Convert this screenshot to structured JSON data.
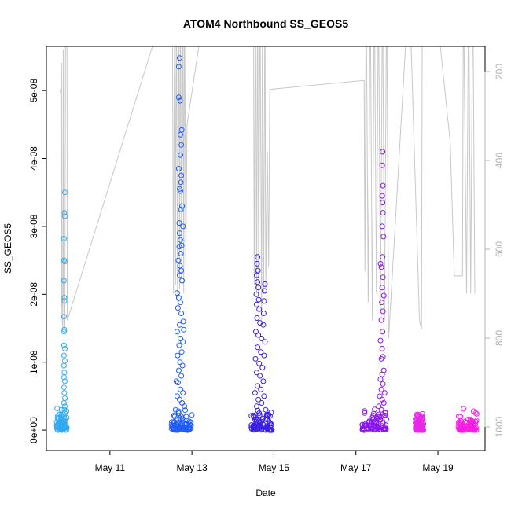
{
  "chart_data": {
    "type": "scatter",
    "title": "ATOM4 Northbound SS_GEOS5",
    "xlabel": "Date",
    "ylabel": "SS_GEOS5",
    "x_ticks": [
      "May 11",
      "May 13",
      "May 15",
      "May 17",
      "May 19"
    ],
    "x_tick_days": [
      11,
      13,
      15,
      17,
      19
    ],
    "xlim_days": [
      9.45,
      20.15
    ],
    "ylim": [
      -3e-09,
      5.65e-08
    ],
    "y_ticks": [
      0,
      1e-08,
      2e-08,
      3e-08,
      4e-08,
      5e-08
    ],
    "y_tick_labels": [
      "0e+00",
      "1e-08",
      "2e-08",
      "3e-08",
      "4e-08",
      "5e-08"
    ],
    "right_axis": {
      "ticks": [
        200,
        400,
        600,
        800,
        1000
      ],
      "inverted": true,
      "color": "#b3b3b3"
    },
    "grid": false,
    "legend": "none",
    "colors": {
      "flight1": "#33a9f0",
      "flight2": "#1f5cf5",
      "flight3": "#3a1ee6",
      "flight4": "#8a14f0",
      "flight5": "#e62ae6",
      "flight6": "#f51ee3",
      "pressure_line": "#c8c8c8"
    },
    "flights": [
      {
        "key": "flight1",
        "day_range": [
          9.7,
          9.95
        ],
        "points": [
          [
            9.9,
            3.5e-08
          ],
          [
            9.89,
            3.2e-08
          ],
          [
            9.9,
            3.15e-08
          ],
          [
            9.88,
            2.82e-08
          ],
          [
            9.88,
            2.5e-08
          ],
          [
            9.9,
            2.48e-08
          ],
          [
            9.88,
            2.2e-08
          ],
          [
            9.89,
            1.95e-08
          ],
          [
            9.89,
            1.9e-08
          ],
          [
            9.88,
            1.67e-08
          ],
          [
            9.89,
            1.48e-08
          ],
          [
            9.88,
            1.45e-08
          ],
          [
            9.88,
            1.25e-08
          ],
          [
            9.9,
            1.2e-08
          ],
          [
            9.88,
            1.1e-08
          ],
          [
            9.9,
            1.02e-08
          ],
          [
            9.88,
            9.5e-09
          ],
          [
            9.89,
            8.5e-09
          ],
          [
            9.88,
            7.8e-09
          ],
          [
            9.9,
            7.2e-09
          ],
          [
            9.88,
            6.3e-09
          ],
          [
            9.89,
            5.5e-09
          ],
          [
            9.9,
            4.7e-09
          ],
          [
            9.88,
            4e-09
          ],
          [
            9.9,
            3.5e-09
          ],
          [
            9.89,
            3e-09
          ],
          [
            9.9,
            2.5e-09
          ],
          [
            9.88,
            2e-09
          ],
          [
            9.91,
            1.5e-09
          ],
          [
            9.89,
            1e-09
          ],
          [
            9.92,
            5e-10
          ],
          [
            9.87,
            2e-10
          ]
        ]
      },
      {
        "key": "flight2",
        "day_range": [
          12.5,
          13.0
        ],
        "points": [
          [
            12.7,
            5.48e-08
          ],
          [
            12.68,
            5.35e-08
          ],
          [
            12.68,
            4.9e-08
          ],
          [
            12.71,
            4.85e-08
          ],
          [
            12.75,
            4.42e-08
          ],
          [
            12.72,
            4.35e-08
          ],
          [
            12.74,
            4.2e-08
          ],
          [
            12.72,
            4.05e-08
          ],
          [
            12.68,
            3.85e-08
          ],
          [
            12.74,
            3.75e-08
          ],
          [
            12.73,
            3.65e-08
          ],
          [
            12.7,
            3.55e-08
          ],
          [
            12.72,
            3.52e-08
          ],
          [
            12.76,
            3.3e-08
          ],
          [
            12.73,
            3.25e-08
          ],
          [
            12.69,
            3.05e-08
          ],
          [
            12.78,
            3e-08
          ],
          [
            12.7,
            2.9e-08
          ],
          [
            12.72,
            2.8e-08
          ],
          [
            12.75,
            2.72e-08
          ],
          [
            12.69,
            2.7e-08
          ],
          [
            12.73,
            2.6e-08
          ],
          [
            12.67,
            2.5e-08
          ],
          [
            12.71,
            2.42e-08
          ],
          [
            12.74,
            2.35e-08
          ],
          [
            12.7,
            2.28e-08
          ],
          [
            12.76,
            2.2e-08
          ],
          [
            12.64,
            2.02e-08
          ],
          [
            12.68,
            1.95e-08
          ],
          [
            12.72,
            1.88e-08
          ],
          [
            12.66,
            1.8e-08
          ],
          [
            12.74,
            1.72e-08
          ],
          [
            12.79,
            1.6e-08
          ],
          [
            12.7,
            1.55e-08
          ],
          [
            12.8,
            1.48e-08
          ],
          [
            12.64,
            1.45e-08
          ],
          [
            12.72,
            1.35e-08
          ],
          [
            12.78,
            1.3e-08
          ],
          [
            12.69,
            1.25e-08
          ],
          [
            12.75,
            1.15e-08
          ],
          [
            12.65,
            1.1e-08
          ],
          [
            12.71,
            1e-08
          ],
          [
            12.77,
            9.5e-09
          ],
          [
            12.68,
            8.8e-09
          ],
          [
            12.74,
            8e-09
          ],
          [
            12.62,
            7.2e-09
          ],
          [
            12.66,
            7e-09
          ],
          [
            12.72,
            6e-09
          ],
          [
            12.78,
            5.5e-09
          ],
          [
            12.64,
            5e-09
          ],
          [
            12.7,
            4.5e-09
          ],
          [
            12.76,
            4e-09
          ],
          [
            12.82,
            3.5e-09
          ],
          [
            12.6,
            3e-09
          ],
          [
            12.68,
            2.5e-09
          ],
          [
            12.74,
            2e-09
          ],
          [
            12.8,
            1.5e-09
          ],
          [
            12.56,
            1e-09
          ],
          [
            12.62,
            5e-10
          ],
          [
            12.7,
            2e-10
          ],
          [
            12.78,
            1e-10
          ],
          [
            12.9,
            0.0
          ]
        ]
      },
      {
        "key": "flight3",
        "day_range": [
          14.45,
          14.95
        ],
        "points": [
          [
            14.6,
            2.55e-08
          ],
          [
            14.59,
            2.45e-08
          ],
          [
            14.61,
            2.35e-08
          ],
          [
            14.58,
            2.28e-08
          ],
          [
            14.6,
            2.18e-08
          ],
          [
            14.78,
            2.15e-08
          ],
          [
            14.62,
            2.1e-08
          ],
          [
            14.77,
            2.05e-08
          ],
          [
            14.57,
            2e-08
          ],
          [
            14.63,
            1.92e-08
          ],
          [
            14.76,
            1.9e-08
          ],
          [
            14.58,
            1.85e-08
          ],
          [
            14.64,
            1.78e-08
          ],
          [
            14.75,
            1.72e-08
          ],
          [
            14.59,
            1.65e-08
          ],
          [
            14.66,
            1.58e-08
          ],
          [
            14.74,
            1.55e-08
          ],
          [
            14.56,
            1.45e-08
          ],
          [
            14.62,
            1.4e-08
          ],
          [
            14.7,
            1.35e-08
          ],
          [
            14.78,
            1.3e-08
          ],
          [
            14.6,
            1.22e-08
          ],
          [
            14.68,
            1.15e-08
          ],
          [
            14.76,
            1.1e-08
          ],
          [
            14.55,
            1.05e-08
          ],
          [
            14.64,
            9.8e-09
          ],
          [
            14.72,
            9.2e-09
          ],
          [
            14.58,
            8.5e-09
          ],
          [
            14.66,
            8e-09
          ],
          [
            14.74,
            7.2e-09
          ],
          [
            14.6,
            6.5e-09
          ],
          [
            14.68,
            6e-09
          ],
          [
            14.54,
            5.5e-09
          ],
          [
            14.76,
            5e-09
          ],
          [
            14.62,
            4.5e-09
          ],
          [
            14.7,
            4e-09
          ],
          [
            14.58,
            3.5e-09
          ],
          [
            14.8,
            3e-09
          ],
          [
            14.64,
            2.5e-09
          ],
          [
            14.52,
            2e-09
          ],
          [
            14.72,
            1.5e-09
          ],
          [
            14.6,
            1e-09
          ],
          [
            14.68,
            5e-10
          ],
          [
            14.84,
            2e-10
          ],
          [
            14.5,
            1e-10
          ],
          [
            14.9,
            0.0
          ]
        ]
      },
      {
        "key": "flight4",
        "day_range": [
          17.15,
          17.75
        ],
        "points": [
          [
            17.65,
            4.1e-08
          ],
          [
            17.64,
            3.9e-08
          ],
          [
            17.66,
            3.6e-08
          ],
          [
            17.64,
            3.45e-08
          ],
          [
            17.65,
            3.35e-08
          ],
          [
            17.66,
            3.2e-08
          ],
          [
            17.64,
            3e-08
          ],
          [
            17.67,
            2.85e-08
          ],
          [
            17.65,
            2.55e-08
          ],
          [
            17.6,
            2.45e-08
          ],
          [
            17.62,
            2.4e-08
          ],
          [
            17.66,
            2.25e-08
          ],
          [
            17.64,
            2.1e-08
          ],
          [
            17.68,
            1.98e-08
          ],
          [
            17.63,
            1.88e-08
          ],
          [
            17.66,
            1.75e-08
          ],
          [
            17.62,
            1.62e-08
          ],
          [
            17.65,
            1.45e-08
          ],
          [
            17.6,
            1.32e-08
          ],
          [
            17.64,
            1.2e-08
          ],
          [
            17.66,
            1.08e-08
          ],
          [
            17.62,
            1.05e-08
          ],
          [
            17.68,
            8.8e-09
          ],
          [
            17.64,
            8.2e-09
          ],
          [
            17.6,
            7.5e-09
          ],
          [
            17.66,
            6.8e-09
          ],
          [
            17.62,
            6e-09
          ],
          [
            17.7,
            5.5e-09
          ],
          [
            17.58,
            5e-09
          ],
          [
            17.64,
            4.5e-09
          ],
          [
            17.68,
            4e-09
          ],
          [
            17.56,
            3.5e-09
          ],
          [
            17.62,
            3e-09
          ],
          [
            17.72,
            2.5e-09
          ],
          [
            17.54,
            2e-09
          ],
          [
            17.6,
            1.5e-09
          ],
          [
            17.66,
            1e-09
          ],
          [
            17.5,
            5e-10
          ],
          [
            17.4,
            2e-10
          ],
          [
            17.3,
            1e-10
          ],
          [
            17.2,
            0.0
          ]
        ]
      },
      {
        "key": "flight5",
        "day_range": [
          18.45,
          18.65
        ],
        "points": [
          [
            18.5,
            1.5e-09
          ],
          [
            18.5,
            1.2e-09
          ],
          [
            18.51,
            8e-10
          ],
          [
            18.5,
            5e-10
          ],
          [
            18.52,
            3e-10
          ],
          [
            18.55,
            1e-10
          ],
          [
            18.6,
            0.0
          ]
        ]
      },
      {
        "key": "flight6",
        "day_range": [
          19.5,
          19.95
        ],
        "points": [
          [
            19.85,
            1.2e-09
          ],
          [
            19.82,
            1e-09
          ],
          [
            19.86,
            8e-10
          ],
          [
            19.8,
            6e-10
          ],
          [
            19.84,
            5e-10
          ],
          [
            19.78,
            4e-10
          ],
          [
            19.88,
            3e-10
          ],
          [
            19.75,
            2e-10
          ],
          [
            19.7,
            1e-10
          ],
          [
            19.6,
            0.0
          ],
          [
            19.9,
            0.0
          ],
          [
            19.55,
            0.0
          ]
        ]
      }
    ],
    "pressure_line": [
      [
        9.78,
        240
      ],
      [
        9.8,
        250
      ],
      [
        9.81,
        730
      ],
      [
        9.82,
        180
      ],
      [
        9.83,
        750
      ],
      [
        9.85,
        780
      ],
      [
        9.86,
        150
      ],
      [
        9.87,
        700
      ],
      [
        9.9,
        780
      ],
      [
        9.92,
        0
      ],
      [
        9.95,
        0
      ],
      [
        9.96,
        760
      ],
      [
        12.52,
        0
      ],
      [
        12.55,
        700
      ],
      [
        12.58,
        0
      ],
      [
        12.6,
        680
      ],
      [
        12.62,
        0
      ],
      [
        12.65,
        720
      ],
      [
        12.68,
        0
      ],
      [
        12.7,
        690
      ],
      [
        12.72,
        0
      ],
      [
        12.75,
        660
      ],
      [
        12.78,
        0
      ],
      [
        12.8,
        700
      ],
      [
        12.82,
        0
      ],
      [
        12.85,
        640
      ],
      [
        12.88,
        320
      ],
      [
        13.4,
        0
      ],
      [
        14.5,
        0
      ],
      [
        14.52,
        680
      ],
      [
        14.55,
        0
      ],
      [
        14.58,
        700
      ],
      [
        14.6,
        0
      ],
      [
        14.63,
        720
      ],
      [
        14.66,
        0
      ],
      [
        14.7,
        760
      ],
      [
        14.72,
        0
      ],
      [
        14.75,
        700
      ],
      [
        14.78,
        0
      ],
      [
        14.8,
        690
      ],
      [
        14.84,
        380
      ],
      [
        14.87,
        640
      ],
      [
        14.9,
        240
      ],
      [
        17.2,
        220
      ],
      [
        17.22,
        650
      ],
      [
        17.25,
        0
      ],
      [
        17.3,
        720
      ],
      [
        17.35,
        0
      ],
      [
        17.4,
        760
      ],
      [
        17.45,
        0
      ],
      [
        17.5,
        700
      ],
      [
        17.55,
        0
      ],
      [
        17.6,
        740
      ],
      [
        17.65,
        0
      ],
      [
        17.7,
        760
      ],
      [
        17.75,
        0
      ],
      [
        17.8,
        800
      ],
      [
        18.3,
        0
      ],
      [
        18.55,
        760
      ],
      [
        18.6,
        780
      ],
      [
        18.62,
        0
      ],
      [
        18.9,
        0
      ],
      [
        19.3,
        360
      ],
      [
        19.4,
        660
      ],
      [
        19.6,
        660
      ],
      [
        19.62,
        0
      ],
      [
        19.7,
        700
      ],
      [
        19.75,
        0
      ],
      [
        19.8,
        700
      ],
      [
        19.85,
        0
      ],
      [
        19.9,
        700
      ]
    ]
  }
}
